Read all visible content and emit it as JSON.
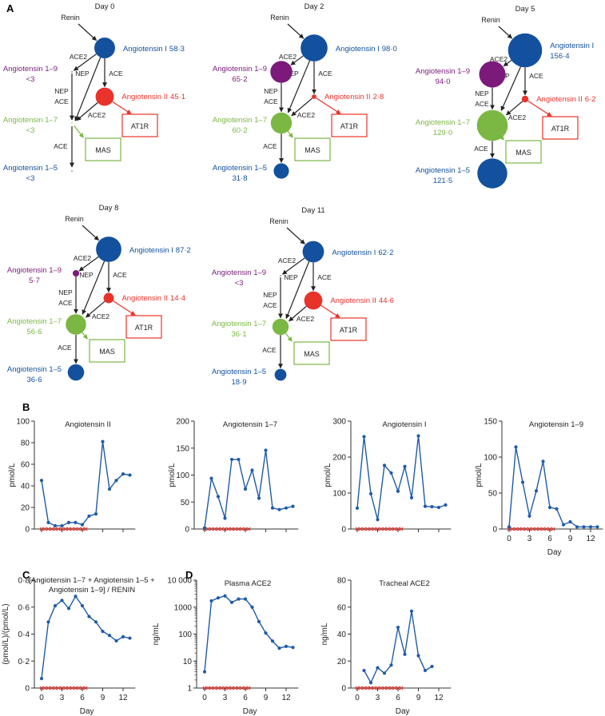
{
  "panel_letters": {
    "a": "A",
    "b": "B",
    "c": "C",
    "d": "D"
  },
  "colors": {
    "ang1": "#13519e",
    "ang19": "#7b1a7a",
    "ang2": "#e8322a",
    "ang17": "#7ab843",
    "ang15": "#13519e",
    "line": "#1f5ba8",
    "marker": "#e8322a"
  },
  "diagram": {
    "renin": "Renin",
    "enzymes": {
      "ace2": "ACE2",
      "ace": "ACE",
      "nep": "NEP"
    },
    "receptors": {
      "at1r": "AT1R",
      "mas": "MAS"
    },
    "node_names": {
      "ang1": "Angiotensin I",
      "ang19": "Angiotensin 1–9",
      "ang2": "Angiotensin II",
      "ang17": "Angiotensin 1–7",
      "ang15": "Angiotensin 1–5"
    },
    "days": [
      {
        "label": "Day 0",
        "ang1": {
          "text": "58·3",
          "value": 58.3
        },
        "ang19": {
          "text": "<3",
          "value": 0
        },
        "ang2": {
          "text": "45·1",
          "value": 45.1
        },
        "ang17": {
          "text": "<3",
          "value": 0
        },
        "ang15": {
          "text": "<3",
          "value": 0
        }
      },
      {
        "label": "Day 2",
        "ang1": {
          "text": "98·0",
          "value": 98.0
        },
        "ang19": {
          "text": "65·2",
          "value": 65.2
        },
        "ang2": {
          "text": "2·8",
          "value": 2.8
        },
        "ang17": {
          "text": "60·2",
          "value": 60.2
        },
        "ang15": {
          "text": "31·8",
          "value": 31.8
        }
      },
      {
        "label": "Day 5",
        "ang1": {
          "text": "156·4",
          "value": 156.4
        },
        "ang19": {
          "text": "94·0",
          "value": 94.0
        },
        "ang2": {
          "text": "6·2",
          "value": 6.2
        },
        "ang17": {
          "text": "129·0",
          "value": 129.0
        },
        "ang15": {
          "text": "121·5",
          "value": 121.5
        }
      },
      {
        "label": "Day 8",
        "ang1": {
          "text": "87·2",
          "value": 87.2
        },
        "ang19": {
          "text": "5·7",
          "value": 5.7
        },
        "ang2": {
          "text": "14·4",
          "value": 14.4
        },
        "ang17": {
          "text": "56·6",
          "value": 56.6
        },
        "ang15": {
          "text": "36·6",
          "value": 36.6
        }
      },
      {
        "label": "Day 11",
        "ang1": {
          "text": "62·2",
          "value": 62.2
        },
        "ang19": {
          "text": "<3",
          "value": 0
        },
        "ang2": {
          "text": "44·6",
          "value": 44.6
        },
        "ang17": {
          "text": "36·1",
          "value": 36.1
        },
        "ang15": {
          "text": "18·9",
          "value": 18.9
        }
      }
    ]
  },
  "chart_data": [
    {
      "type": "line",
      "panel": "B",
      "title": "Angiotensin II",
      "ylabel": "pmol/L",
      "xlabel": "",
      "ylim": [
        0,
        100
      ],
      "yticks": [
        0,
        20,
        40,
        60,
        80,
        100
      ],
      "xticks": [
        0,
        3,
        6,
        9,
        12
      ],
      "show_xtick_labels": false,
      "x": [
        0,
        1,
        2,
        3,
        4,
        5,
        6,
        7,
        8,
        9,
        10,
        11,
        12,
        13
      ],
      "y": [
        45,
        6,
        3,
        3,
        6,
        6,
        4,
        12,
        14,
        81,
        37,
        45,
        51,
        50
      ],
      "treatment_days": [
        0,
        0.5,
        1,
        1.5,
        2,
        2.5,
        3,
        3.5,
        4,
        4.5,
        5,
        5.5,
        6,
        6.5
      ]
    },
    {
      "type": "line",
      "panel": "B",
      "title": "Angiotensin 1–7",
      "ylabel": "pmol/L",
      "xlabel": "",
      "ylim": [
        0,
        200
      ],
      "yticks": [
        0,
        50,
        100,
        150,
        200
      ],
      "xticks": [
        0,
        3,
        6,
        9,
        12
      ],
      "show_xtick_labels": false,
      "x": [
        0,
        1,
        2,
        3,
        4,
        5,
        6,
        7,
        8,
        9,
        10,
        11,
        12,
        13
      ],
      "y": [
        2,
        94,
        60,
        20,
        129,
        129,
        74,
        109,
        57,
        146,
        39,
        36,
        39,
        42
      ],
      "treatment_days": [
        0,
        0.5,
        1,
        1.5,
        2,
        2.5,
        3,
        3.5,
        4,
        4.5,
        5,
        5.5,
        6,
        6.5
      ]
    },
    {
      "type": "line",
      "panel": "B",
      "title": "Angiotensin I",
      "ylabel": "pmol/L",
      "xlabel": "",
      "ylim": [
        0,
        300
      ],
      "yticks": [
        0,
        100,
        200,
        300
      ],
      "xticks": [
        0,
        3,
        6,
        9,
        12
      ],
      "show_xtick_labels": false,
      "x": [
        0,
        1,
        2,
        3,
        4,
        5,
        6,
        7,
        8,
        9,
        10,
        11,
        12,
        13
      ],
      "y": [
        58,
        257,
        98,
        26,
        177,
        156,
        105,
        174,
        87,
        259,
        63,
        62,
        60,
        67
      ],
      "treatment_days": [
        0,
        0.5,
        1,
        1.5,
        2,
        2.5,
        3,
        3.5,
        4,
        4.5,
        5,
        5.5,
        6,
        6.5
      ]
    },
    {
      "type": "line",
      "panel": "B",
      "title": "Angiotensin 1–9",
      "ylabel": "pmol/L",
      "xlabel": "Day",
      "ylim": [
        0,
        150
      ],
      "yticks": [
        0,
        50,
        100,
        150
      ],
      "xticks": [
        0,
        3,
        6,
        9,
        12
      ],
      "show_xtick_labels": true,
      "x": [
        0,
        1,
        2,
        3,
        4,
        5,
        6,
        7,
        8,
        9,
        10,
        11,
        12,
        13
      ],
      "y": [
        3,
        114,
        65,
        18,
        53,
        94,
        30,
        28,
        6,
        10,
        3,
        3,
        3,
        3
      ],
      "treatment_days": [
        0,
        0.5,
        1,
        1.5,
        2,
        2.5,
        3,
        3.5,
        4,
        4.5,
        5,
        5.5,
        6,
        6.5
      ]
    },
    {
      "type": "line",
      "panel": "C",
      "title": "[Angiotensin 1–7 + Angiotensin 1–5 +",
      "title2": "Angiotensin 1–9] / RENIN",
      "ylabel": "(pmol/L)/(pmol/L)",
      "xlabel": "Day",
      "ylim": [
        0,
        0.8
      ],
      "yticks": [
        0,
        0.2,
        0.4,
        0.6,
        0.8
      ],
      "ytick_labels": [
        "0",
        "0·2",
        "0·4",
        "0·6",
        "0·8"
      ],
      "xticks": [
        0,
        3,
        6,
        9,
        12
      ],
      "show_xtick_labels": true,
      "x": [
        0,
        1,
        2,
        3,
        4,
        5,
        6,
        7,
        8,
        9,
        10,
        11,
        12,
        13
      ],
      "y": [
        0.07,
        0.49,
        0.61,
        0.65,
        0.59,
        0.68,
        0.61,
        0.53,
        0.49,
        0.42,
        0.39,
        0.35,
        0.38,
        0.37
      ],
      "treatment_days": [
        0,
        0.5,
        1,
        1.5,
        2,
        2.5,
        3,
        3.5,
        4,
        4.5,
        5,
        5.5,
        6,
        6.5
      ]
    },
    {
      "type": "line",
      "panel": "D",
      "title": "Plasma ACE2",
      "ylabel": "ng/mL",
      "xlabel": "Day",
      "yscale": "log",
      "ylim": [
        1,
        10000
      ],
      "yticks": [
        1,
        10,
        100,
        1000,
        10000
      ],
      "ytick_labels": [
        "1",
        "10",
        "100",
        "1000",
        "10 000"
      ],
      "xticks": [
        0,
        3,
        6,
        9,
        12
      ],
      "show_xtick_labels": true,
      "x": [
        0,
        1,
        2,
        3,
        4,
        5,
        6,
        7,
        8,
        9,
        10,
        11,
        12,
        13
      ],
      "y": [
        4,
        1700,
        2200,
        2600,
        1500,
        2000,
        2000,
        1000,
        290,
        110,
        55,
        30,
        35,
        32
      ],
      "treatment_days": [
        0,
        0.5,
        1,
        1.5,
        2,
        2.5,
        3,
        3.5,
        4,
        4.5,
        5,
        5.5,
        6,
        6.5
      ]
    },
    {
      "type": "line",
      "panel": "D",
      "title": "Tracheal ACE2",
      "ylabel": "ng/mL",
      "xlabel": "Day",
      "ylim": [
        0,
        80
      ],
      "yticks": [
        0,
        20,
        40,
        60,
        80
      ],
      "xticks": [
        0,
        3,
        6,
        9,
        12
      ],
      "show_xtick_labels": true,
      "x": [
        1,
        2,
        3,
        4,
        5,
        6,
        7,
        8,
        9,
        10,
        11
      ],
      "y": [
        13,
        4,
        15,
        11,
        17,
        45,
        25,
        57,
        24,
        13,
        16
      ],
      "treatment_days": [
        0,
        0.5,
        1,
        1.5,
        2,
        2.5,
        3,
        3.5,
        4,
        4.5,
        5,
        5.5,
        6,
        6.5
      ]
    }
  ]
}
